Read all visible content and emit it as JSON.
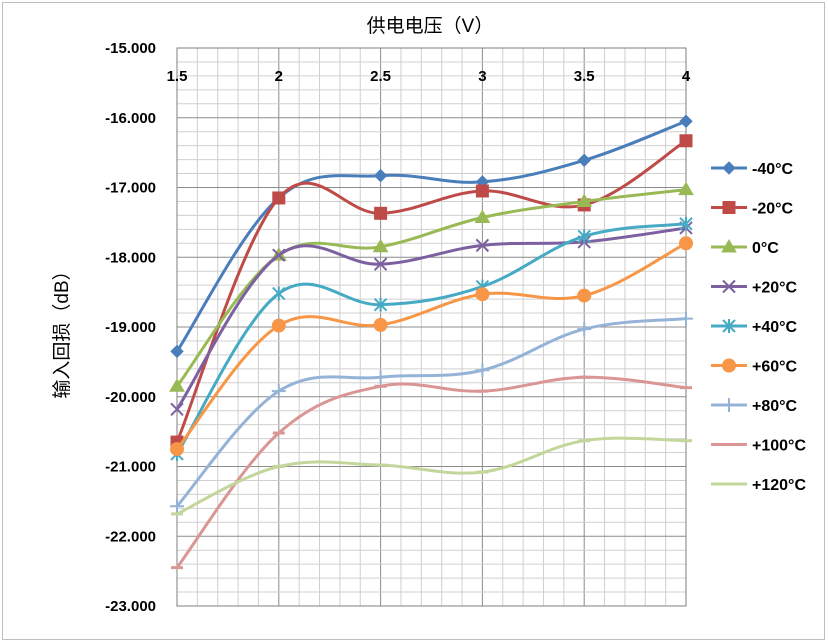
{
  "chart_data": {
    "type": "line",
    "title": "供电电压（V）",
    "xlabel": "供电电压（V）",
    "ylabel": "输入回损（dB）",
    "x": [
      1.5,
      2,
      2.5,
      3,
      3.5,
      4
    ],
    "x_tick_labels": [
      "1.5",
      "2",
      "2.5",
      "3",
      "3.5",
      "4"
    ],
    "ylim": [
      -23,
      -15
    ],
    "y_tick_labels": [
      "-15.000",
      "-16.000",
      "-17.000",
      "-18.000",
      "-19.000",
      "-20.000",
      "-21.000",
      "-22.000",
      "-23.000"
    ],
    "x_axis_position": "top",
    "grid": true,
    "legend_position": "right",
    "series": [
      {
        "name": "-40°C",
        "values": [
          -19.35,
          -17.15,
          -16.83,
          -16.92,
          -16.61,
          -16.05
        ],
        "color": "#4a7ebb",
        "marker": "diamond"
      },
      {
        "name": "-20°C",
        "values": [
          -20.65,
          -17.15,
          -17.37,
          -17.05,
          -17.25,
          -16.33
        ],
        "color": "#be4b48",
        "marker": "square"
      },
      {
        "name": "0°C",
        "values": [
          -19.85,
          -17.97,
          -17.85,
          -17.43,
          -17.2,
          -17.03
        ],
        "color": "#98b954",
        "marker": "triangle"
      },
      {
        "name": "+20°C",
        "values": [
          -20.18,
          -17.97,
          -18.1,
          -17.83,
          -17.78,
          -17.58
        ],
        "color": "#7d60a0",
        "marker": "x"
      },
      {
        "name": "+40°C",
        "values": [
          -20.82,
          -18.52,
          -18.68,
          -18.42,
          -17.7,
          -17.52
        ],
        "color": "#46aac4",
        "marker": "asterisk"
      },
      {
        "name": "+60°C",
        "values": [
          -20.75,
          -18.98,
          -18.97,
          -18.53,
          -18.55,
          -17.8
        ],
        "color": "#f79646",
        "marker": "circle"
      },
      {
        "name": "+80°C",
        "values": [
          -21.57,
          -19.92,
          -19.72,
          -19.62,
          -19.03,
          -18.88
        ],
        "color": "#95b3d7",
        "marker": "plus"
      },
      {
        "name": "+100°C",
        "values": [
          -22.45,
          -20.52,
          -19.85,
          -19.92,
          -19.72,
          -19.87
        ],
        "color": "#d99694",
        "marker": "dash"
      },
      {
        "name": "+120°C",
        "values": [
          -21.68,
          -21.0,
          -20.98,
          -21.08,
          -20.63,
          -20.63
        ],
        "color": "#c3d69b",
        "marker": "dash"
      }
    ]
  }
}
